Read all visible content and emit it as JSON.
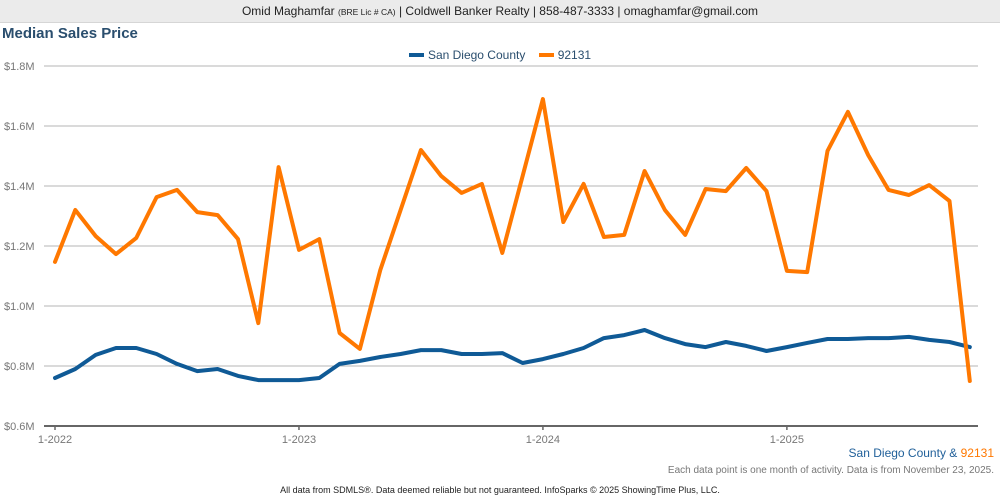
{
  "header": {
    "agent_name": "Omid Maghamfar",
    "license": "(BRE Lic # CA)",
    "rest": "| Coldwell Banker Realty | 858-487-3333 | omaghamfar@gmail.com"
  },
  "subtitle": {
    "series1": "San Diego County",
    "amp": " & ",
    "series2": "92131"
  },
  "note": "Each data point is one month of activity. Data is from November 23, 2025.",
  "footer": "All data from SDMLS®. Data deemed reliable but not guaranteed. InfoSparks © 2025 ShowingTime Plus, LLC.",
  "colors": {
    "series1": "#0f5a96",
    "series2": "#ff7800",
    "grid": "#b4b4b4",
    "axis": "#666666"
  },
  "chart_data": {
    "type": "line",
    "title": "Median Sales Price",
    "xlabel": "",
    "ylabel": "",
    "ylim": [
      0.6,
      1.8
    ],
    "yticks": [
      0.6,
      0.8,
      1.0,
      1.2,
      1.4,
      1.6,
      1.8
    ],
    "ytick_labels": [
      "$0.6M",
      "$0.8M",
      "$1.0M",
      "$1.2M",
      "$1.4M",
      "$1.6M",
      "$1.8M"
    ],
    "xtick_labels": [
      "1-2022",
      "1-2023",
      "1-2024",
      "1-2025"
    ],
    "xtick_indices": [
      0,
      12,
      24,
      36
    ],
    "x_start": "1-2022",
    "x_end": "10-2025",
    "grid": true,
    "legend_position": "top-center",
    "units": "millions USD",
    "series": [
      {
        "name": "San Diego County",
        "values": [
          0.76,
          0.79,
          0.837,
          0.86,
          0.86,
          0.84,
          0.807,
          0.783,
          0.79,
          0.767,
          0.753,
          0.753,
          0.753,
          0.76,
          0.807,
          0.817,
          0.83,
          0.84,
          0.853,
          0.853,
          0.84,
          0.84,
          0.843,
          0.81,
          0.823,
          0.84,
          0.86,
          0.893,
          0.903,
          0.92,
          0.893,
          0.873,
          0.863,
          0.88,
          0.867,
          0.85,
          0.863,
          0.877,
          0.89,
          0.89,
          0.893,
          0.893,
          0.897,
          0.887,
          0.88,
          0.863
        ]
      },
      {
        "name": "92131",
        "values": [
          1.147,
          1.32,
          1.233,
          1.173,
          1.227,
          1.363,
          1.387,
          1.313,
          1.303,
          1.223,
          0.943,
          1.463,
          1.187,
          1.223,
          0.91,
          0.857,
          1.12,
          1.32,
          1.52,
          1.433,
          1.377,
          1.407,
          1.177,
          1.433,
          1.69,
          1.28,
          1.407,
          1.23,
          1.237,
          1.45,
          1.32,
          1.237,
          1.39,
          1.383,
          1.46,
          1.383,
          1.117,
          1.113,
          1.517,
          1.647,
          1.503,
          1.387,
          1.37,
          1.403,
          1.35,
          0.75
        ]
      }
    ]
  }
}
